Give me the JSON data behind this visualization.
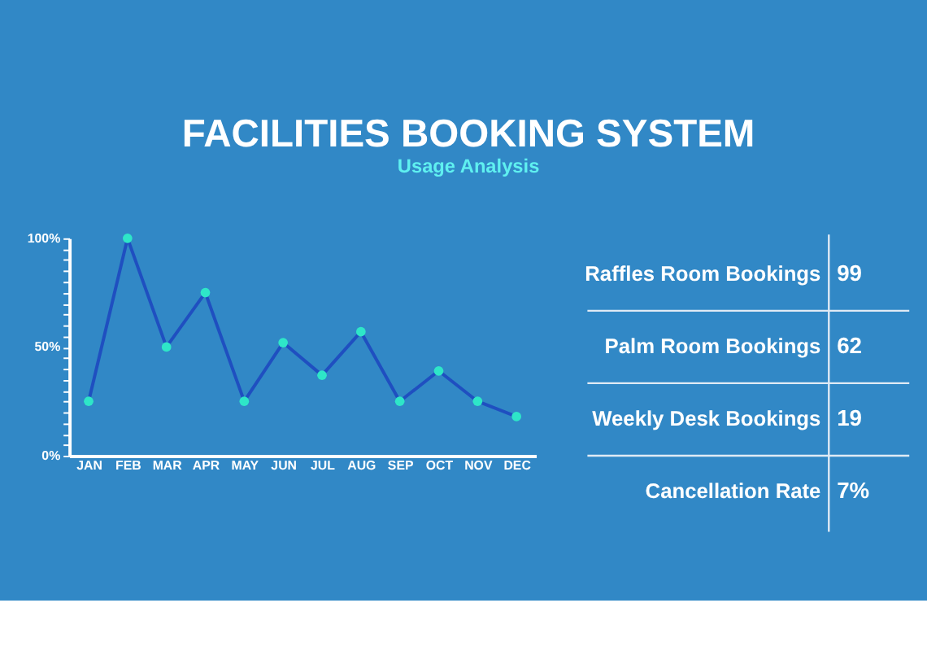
{
  "chart_data": [
    {
      "type": "line",
      "title": "FACILITIES BOOKING SYSTEM",
      "subtitle": "Usage Analysis",
      "categories": [
        "JAN",
        "FEB",
        "MAR",
        "APR",
        "MAY",
        "JUN",
        "JUL",
        "AUG",
        "SEP",
        "OCT",
        "NOV",
        "DEC"
      ],
      "series": [
        {
          "color": "#1f4fc0",
          "values": [
            25,
            100,
            50,
            75,
            25,
            52,
            37,
            57,
            25,
            39,
            25,
            18
          ]
        }
      ],
      "marker": "circle",
      "ylim": [
        0,
        100
      ],
      "yticks": [
        {
          "value": 0,
          "label": "0%"
        },
        {
          "value": 5,
          "label": null
        },
        {
          "value": 10,
          "label": null
        },
        {
          "value": 15,
          "label": null
        },
        {
          "value": 20,
          "label": null
        },
        {
          "value": 25,
          "label": null
        },
        {
          "value": 30,
          "label": null
        },
        {
          "value": 35,
          "label": null
        },
        {
          "value": 40,
          "label": null
        },
        {
          "value": 45,
          "label": null
        },
        {
          "value": 50,
          "label": "50%"
        },
        {
          "value": 55,
          "label": null
        },
        {
          "value": 60,
          "label": null
        },
        {
          "value": 65,
          "label": null
        },
        {
          "value": 70,
          "label": null
        },
        {
          "value": 75,
          "label": null
        },
        {
          "value": 80,
          "label": null
        },
        {
          "value": 85,
          "label": null
        },
        {
          "value": 90,
          "label": null
        },
        {
          "value": 95,
          "label": null
        },
        {
          "value": 100,
          "label": "100%"
        }
      ],
      "grid": false
    },
    {
      "type": "other",
      "annotations": [
        "Raffles Room Bookings",
        "99",
        "Palm Room Bookings",
        "62",
        "Weekly Desk Bookings",
        "19",
        "Cancellation Rate",
        "7%"
      ]
    }
  ]
}
